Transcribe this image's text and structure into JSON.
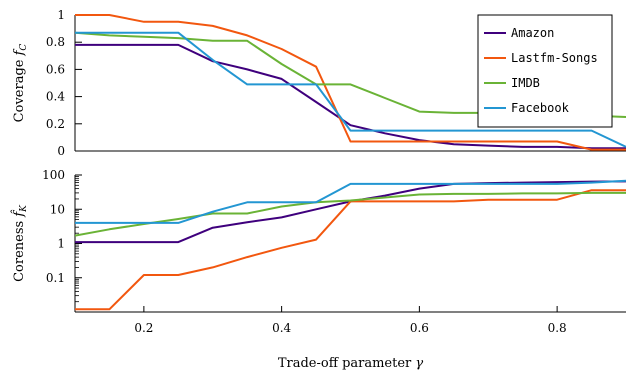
{
  "chart_data": [
    {
      "type": "line",
      "ylabel": "Coverage",
      "ylabel_symbol": "f",
      "ylabel_sub": "C",
      "ylim": [
        0,
        1
      ],
      "yscale": "linear",
      "xlim": [
        0.1,
        0.9
      ],
      "yticks": [
        0,
        0.2,
        0.4,
        0.6,
        0.8,
        1
      ],
      "ytick_labels": [
        "0",
        "0.2",
        "0.4",
        "0.6",
        "0.8",
        "1"
      ],
      "legend_position": "top-right",
      "grid": false,
      "series": [
        {
          "name": "Amazon",
          "color": "#3f007d",
          "x": [
            0.1,
            0.15,
            0.2,
            0.25,
            0.3,
            0.35,
            0.4,
            0.45,
            0.5,
            0.55,
            0.6,
            0.65,
            0.7,
            0.75,
            0.8,
            0.85,
            0.9
          ],
          "y": [
            0.78,
            0.78,
            0.78,
            0.78,
            0.66,
            0.6,
            0.53,
            0.36,
            0.19,
            0.13,
            0.08,
            0.05,
            0.04,
            0.03,
            0.03,
            0.02,
            0.02
          ]
        },
        {
          "name": "Lastfm-Songs",
          "color": "#f2570f",
          "x": [
            0.1,
            0.15,
            0.2,
            0.25,
            0.3,
            0.35,
            0.4,
            0.45,
            0.5,
            0.55,
            0.6,
            0.65,
            0.7,
            0.75,
            0.8,
            0.85,
            0.9
          ],
          "y": [
            1.0,
            1.0,
            0.95,
            0.95,
            0.92,
            0.85,
            0.75,
            0.62,
            0.07,
            0.07,
            0.07,
            0.07,
            0.07,
            0.07,
            0.07,
            0.01,
            0.01
          ]
        },
        {
          "name": "IMDB",
          "color": "#6ab336",
          "x": [
            0.1,
            0.15,
            0.2,
            0.25,
            0.3,
            0.35,
            0.4,
            0.45,
            0.5,
            0.55,
            0.6,
            0.65,
            0.7,
            0.75,
            0.8,
            0.85,
            0.9
          ],
          "y": [
            0.87,
            0.85,
            0.84,
            0.83,
            0.81,
            0.81,
            0.64,
            0.49,
            0.49,
            0.39,
            0.29,
            0.28,
            0.28,
            0.27,
            0.26,
            0.26,
            0.25
          ]
        },
        {
          "name": "Facebook",
          "color": "#2396d2",
          "x": [
            0.1,
            0.15,
            0.2,
            0.25,
            0.3,
            0.35,
            0.4,
            0.45,
            0.5,
            0.55,
            0.6,
            0.65,
            0.7,
            0.75,
            0.8,
            0.85,
            0.9
          ],
          "y": [
            0.87,
            0.87,
            0.87,
            0.87,
            0.67,
            0.49,
            0.49,
            0.49,
            0.15,
            0.15,
            0.15,
            0.15,
            0.15,
            0.15,
            0.15,
            0.15,
            0.03
          ]
        }
      ]
    },
    {
      "type": "line",
      "ylabel": "Coreness",
      "ylabel_symbol": "f",
      "ylabel_sub": "K",
      "yscale": "log",
      "ylim": [
        0.01,
        100
      ],
      "xlim": [
        0.1,
        0.9
      ],
      "xlabel": "Trade-off parameter",
      "xlabel_symbol": "γ",
      "yticks": [
        0.1,
        1,
        10,
        100
      ],
      "ytick_labels": [
        "0.1",
        "1",
        "10",
        "100"
      ],
      "xticks": [
        0.2,
        0.4,
        0.6,
        0.8
      ],
      "xtick_labels": [
        "0.2",
        "0.4",
        "0.6",
        "0.8"
      ],
      "grid": false,
      "series": [
        {
          "name": "Amazon",
          "color": "#3f007d",
          "x": [
            0.1,
            0.15,
            0.2,
            0.25,
            0.3,
            0.35,
            0.4,
            0.45,
            0.5,
            0.55,
            0.6,
            0.65,
            0.7,
            0.75,
            0.8,
            0.85,
            0.9
          ],
          "y": [
            1.1,
            1.1,
            1.1,
            1.1,
            2.9,
            4.2,
            5.8,
            10,
            17,
            25,
            40,
            55,
            58,
            60,
            62,
            64,
            65
          ]
        },
        {
          "name": "Lastfm-Songs",
          "color": "#f2570f",
          "x": [
            0.1,
            0.15,
            0.2,
            0.25,
            0.3,
            0.35,
            0.4,
            0.45,
            0.5,
            0.55,
            0.6,
            0.65,
            0.7,
            0.75,
            0.8,
            0.85,
            0.9
          ],
          "y": [
            0.012,
            0.012,
            0.12,
            0.12,
            0.2,
            0.4,
            0.75,
            1.3,
            17,
            17,
            17,
            17,
            19,
            19,
            19,
            36,
            36
          ]
        },
        {
          "name": "IMDB",
          "color": "#6ab336",
          "x": [
            0.1,
            0.15,
            0.2,
            0.25,
            0.3,
            0.35,
            0.4,
            0.45,
            0.5,
            0.55,
            0.6,
            0.65,
            0.7,
            0.75,
            0.8,
            0.85,
            0.9
          ],
          "y": [
            1.7,
            2.6,
            3.7,
            5.2,
            7.5,
            7.5,
            12,
            16,
            18,
            22,
            27,
            28,
            28,
            29,
            29,
            30,
            30
          ]
        },
        {
          "name": "Facebook",
          "color": "#2396d2",
          "x": [
            0.1,
            0.15,
            0.2,
            0.25,
            0.3,
            0.35,
            0.4,
            0.45,
            0.5,
            0.55,
            0.6,
            0.65,
            0.7,
            0.75,
            0.8,
            0.85,
            0.9
          ],
          "y": [
            4,
            4,
            4,
            4,
            8.5,
            16,
            16,
            16,
            55,
            55,
            55,
            55,
            55,
            55,
            55,
            60,
            68
          ]
        }
      ]
    }
  ]
}
